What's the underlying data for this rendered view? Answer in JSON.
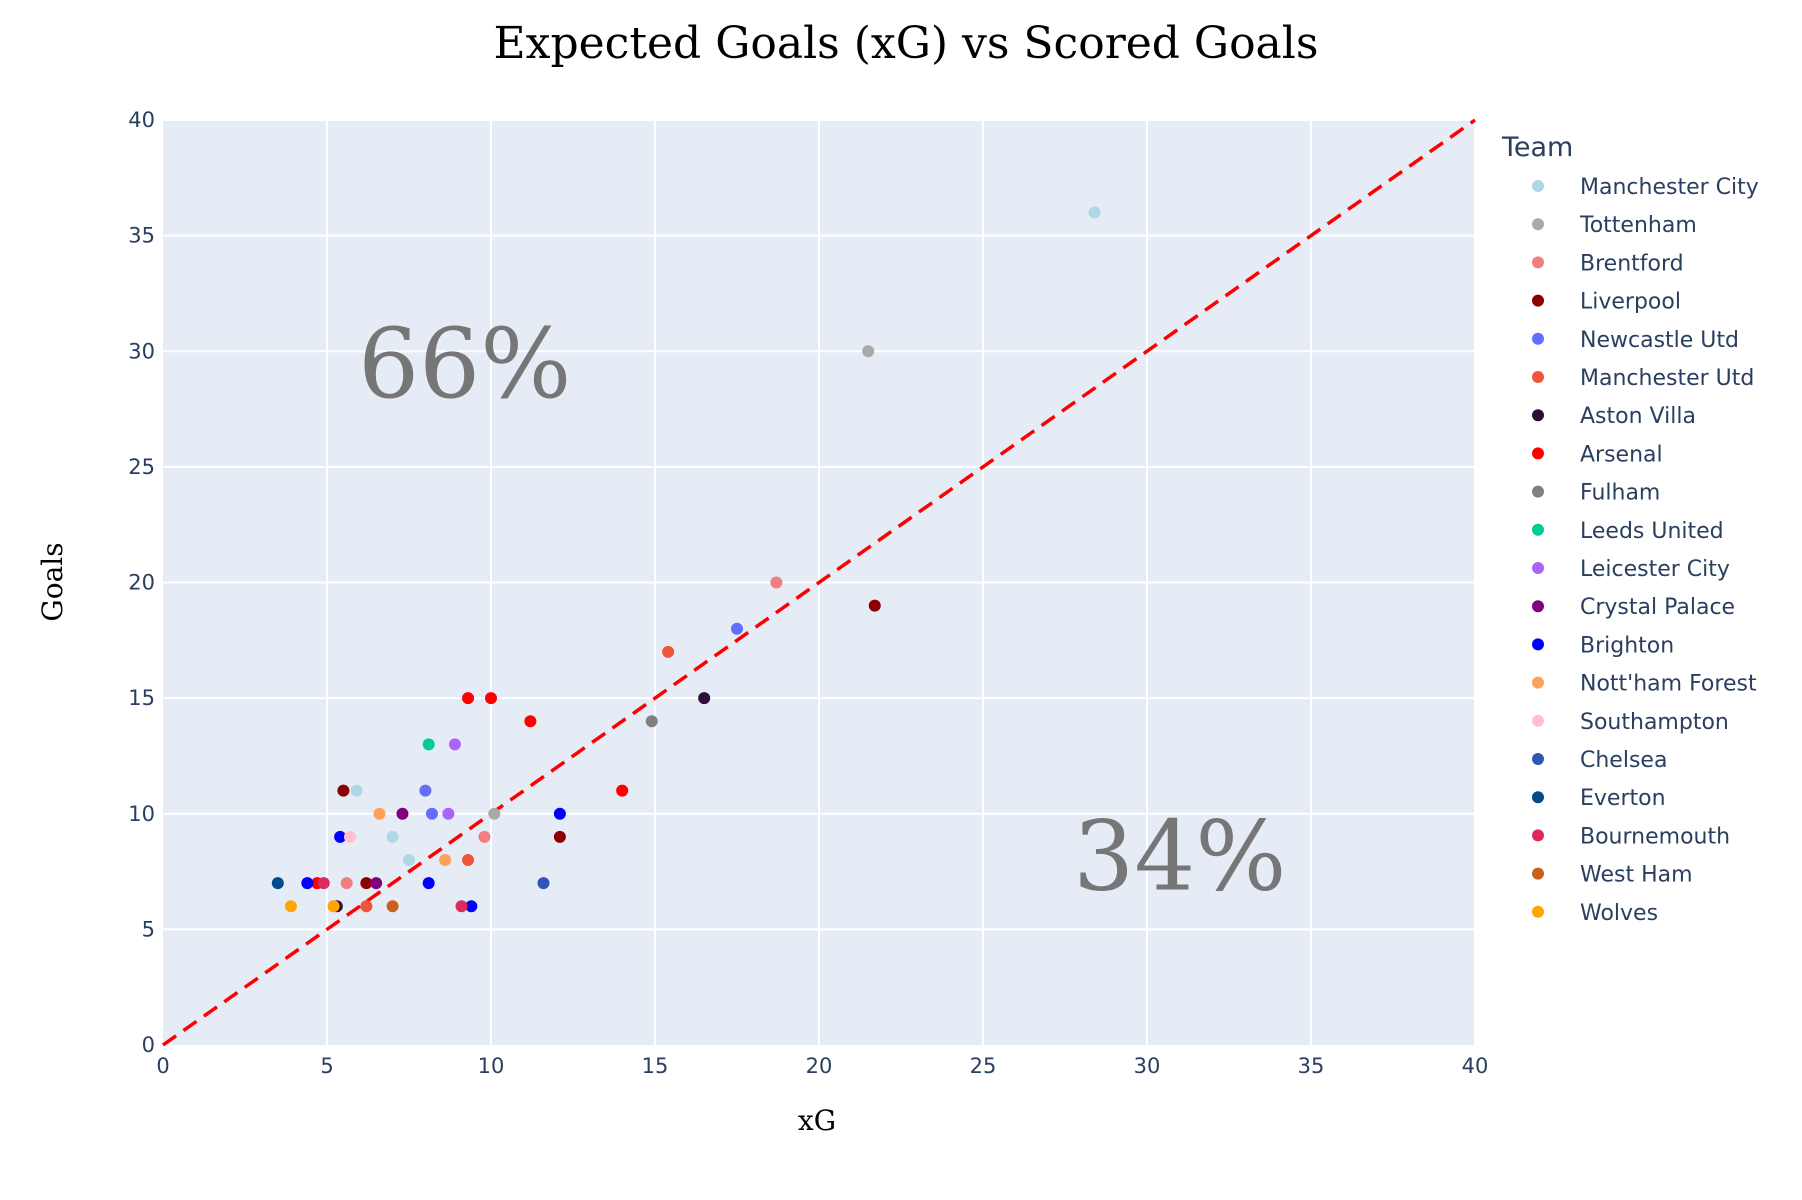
{
  "chart_data": {
    "type": "scatter",
    "title": "Expected Goals (xG) vs Scored Goals",
    "xlabel": "xG",
    "ylabel": "Goals",
    "xlim": [
      0,
      40
    ],
    "ylim": [
      0,
      40
    ],
    "xticks": [
      "0",
      "5",
      "10",
      "15",
      "20",
      "25",
      "30",
      "35",
      "40"
    ],
    "yticks": [
      "0",
      "5",
      "10",
      "15",
      "20",
      "25",
      "30",
      "35",
      "40"
    ],
    "grid": true,
    "plot_bg": "#e5ecf6",
    "legend_title": "Team",
    "legend_position": "right",
    "reference_line": {
      "from": [
        0,
        0
      ],
      "to": [
        40,
        40
      ],
      "style": "dashed",
      "color": "#ff0000"
    },
    "annotations": [
      {
        "text": "66%",
        "x": 9.2,
        "y": 29.5
      },
      {
        "text": "34%",
        "x": 31.0,
        "y": 8.2
      }
    ],
    "series": [
      {
        "name": "Manchester City",
        "color": "#add8e6",
        "points": [
          [
            28.4,
            36
          ],
          [
            5.9,
            11
          ],
          [
            7.5,
            8
          ],
          [
            7.0,
            9
          ]
        ]
      },
      {
        "name": "Tottenham",
        "color": "#a9a9a9",
        "points": [
          [
            21.5,
            30
          ],
          [
            10.1,
            10
          ]
        ]
      },
      {
        "name": "Brentford",
        "color": "#f08080",
        "points": [
          [
            18.7,
            20
          ],
          [
            9.8,
            9
          ],
          [
            5.6,
            7
          ]
        ]
      },
      {
        "name": "Liverpool",
        "color": "#8b0000",
        "points": [
          [
            21.7,
            19
          ],
          [
            5.5,
            11
          ],
          [
            12.1,
            9
          ],
          [
            6.2,
            7
          ]
        ]
      },
      {
        "name": "Newcastle Utd",
        "color": "#636efa",
        "points": [
          [
            17.5,
            18
          ],
          [
            8.0,
            11
          ],
          [
            8.2,
            10
          ]
        ]
      },
      {
        "name": "Manchester Utd",
        "color": "#ef553b",
        "points": [
          [
            15.4,
            17
          ],
          [
            9.3,
            8
          ],
          [
            6.2,
            6
          ]
        ]
      },
      {
        "name": "Aston Villa",
        "color": "#2b0f3a",
        "points": [
          [
            16.5,
            15
          ],
          [
            5.3,
            6
          ]
        ]
      },
      {
        "name": "Arsenal",
        "color": "#ff0000",
        "points": [
          [
            9.3,
            15
          ],
          [
            10.0,
            15
          ],
          [
            11.2,
            14
          ],
          [
            14.0,
            11
          ],
          [
            4.7,
            7
          ]
        ]
      },
      {
        "name": "Fulham",
        "color": "#808080",
        "points": [
          [
            14.9,
            14
          ]
        ]
      },
      {
        "name": "Leeds United",
        "color": "#00cc96",
        "points": [
          [
            8.1,
            13
          ]
        ]
      },
      {
        "name": "Leicester City",
        "color": "#ab63fa",
        "points": [
          [
            8.9,
            13
          ],
          [
            8.7,
            10
          ]
        ]
      },
      {
        "name": "Crystal Palace",
        "color": "#800080",
        "points": [
          [
            7.3,
            10
          ],
          [
            6.5,
            7
          ]
        ]
      },
      {
        "name": "Brighton",
        "color": "#0000ff",
        "points": [
          [
            12.1,
            10
          ],
          [
            5.4,
            9
          ],
          [
            4.4,
            7
          ],
          [
            8.1,
            7
          ],
          [
            9.4,
            6
          ]
        ]
      },
      {
        "name": "Nott'ham Forest",
        "color": "#ffa15a",
        "points": [
          [
            6.6,
            10
          ],
          [
            8.6,
            8
          ]
        ]
      },
      {
        "name": "Southampton",
        "color": "#ffc0cb",
        "points": [
          [
            5.7,
            9
          ]
        ]
      },
      {
        "name": "Chelsea",
        "color": "#2f56b4",
        "points": [
          [
            11.6,
            7
          ]
        ]
      },
      {
        "name": "Everton",
        "color": "#004b8d",
        "points": [
          [
            3.5,
            7
          ]
        ]
      },
      {
        "name": "Bournemouth",
        "color": "#dc2a5c",
        "points": [
          [
            4.9,
            7
          ],
          [
            9.1,
            6
          ]
        ]
      },
      {
        "name": "West Ham",
        "color": "#c8611c",
        "points": [
          [
            7.0,
            6
          ]
        ]
      },
      {
        "name": "Wolves",
        "color": "#ffa500",
        "points": [
          [
            3.9,
            6
          ],
          [
            5.2,
            6
          ]
        ]
      }
    ]
  }
}
